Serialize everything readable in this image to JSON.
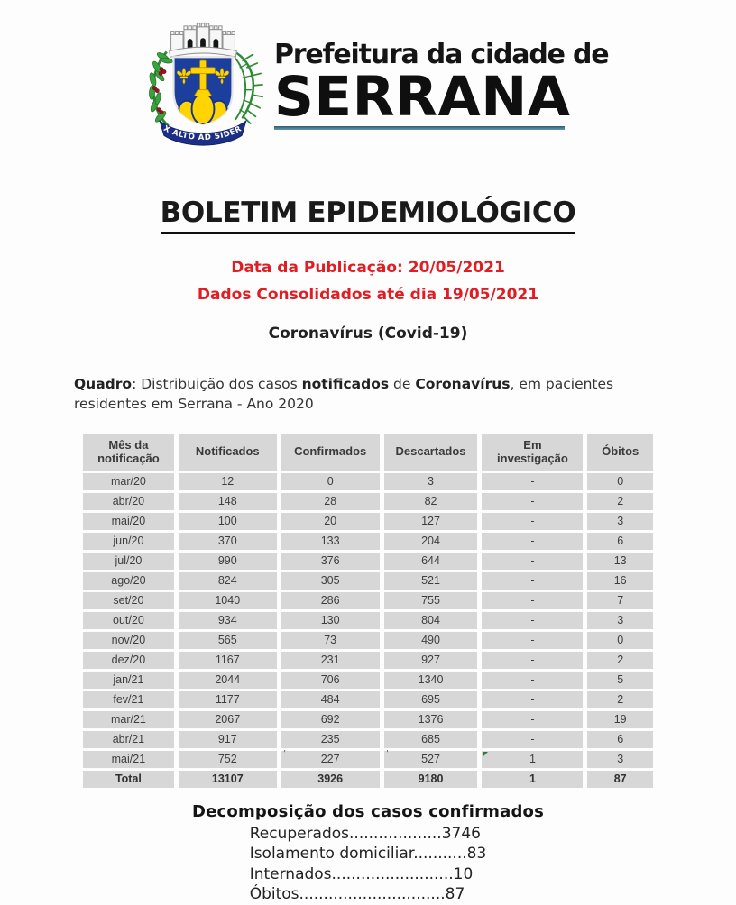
{
  "header": {
    "org_name_line1": "Prefeitura da cidade de",
    "org_name_line2": "SERRANA",
    "crest_motto": "EX ALTO AD SIDERA",
    "colors": {
      "shield_blue": "#1c3f9e",
      "gold": "#ffd400",
      "leaf_green": "#2e8b33",
      "ribbon_blue": "#1c2f86",
      "berry_red": "#9c1320",
      "underline_teal": "#4e8199"
    }
  },
  "title": "BOLETIM EPIDEMIOLÓGICO",
  "publication": {
    "date_line": "Data da Publicação: 20/05/2021",
    "consolidated_line": "Dados Consolidados até dia 19/05/2021",
    "text_color": "#e11d23"
  },
  "subtitle": "Coronavírus (Covid-19)",
  "caption": {
    "label": "Quadro",
    "part1": ": Distribuição dos casos ",
    "bold1": "notificados",
    "part2": " de ",
    "bold2": "Coronavírus",
    "part3": ", em pacientes residentes em Serrana - Ano 2020"
  },
  "table": {
    "headers": [
      "Mês da notificação",
      "Notificados",
      "Confirmados",
      "Descartados",
      "Em investigação",
      "Óbitos"
    ],
    "rows": [
      [
        "mar/20",
        "12",
        "0",
        "3",
        "-",
        "0"
      ],
      [
        "abr/20",
        "148",
        "28",
        "82",
        "-",
        "2"
      ],
      [
        "mai/20",
        "100",
        "20",
        "127",
        "-",
        "3"
      ],
      [
        "jun/20",
        "370",
        "133",
        "204",
        "-",
        "6"
      ],
      [
        "jul/20",
        "990",
        "376",
        "644",
        "-",
        "13"
      ],
      [
        "ago/20",
        "824",
        "305",
        "521",
        "-",
        "16"
      ],
      [
        "set/20",
        "1040",
        "286",
        "755",
        "-",
        "7"
      ],
      [
        "out/20",
        "934",
        "130",
        "804",
        "-",
        "3"
      ],
      [
        "nov/20",
        "565",
        "73",
        "490",
        "-",
        "0"
      ],
      [
        "dez/20",
        "1167",
        "231",
        "927",
        "-",
        "2"
      ],
      [
        "jan/21",
        "2044",
        "706",
        "1340",
        "-",
        "5"
      ],
      [
        "fev/21",
        "1177",
        "484",
        "695",
        "-",
        "2"
      ],
      [
        "mar/21",
        "2067",
        "692",
        "1376",
        "-",
        "19"
      ],
      [
        "abr/21",
        "917",
        "235",
        "685",
        "-",
        "6"
      ],
      [
        "mai/21",
        "752",
        "227",
        "527",
        "1",
        "3"
      ]
    ],
    "total_row": [
      "Total",
      "13107",
      "3926",
      "9180",
      "1",
      "87"
    ],
    "cell_bg": "#d7d7d7",
    "annotations": {
      "green_triangle_cell": {
        "row": 14,
        "col": 4
      },
      "tick_cells": [
        {
          "row": 14,
          "col": 2
        },
        {
          "row": 14,
          "col": 3
        }
      ]
    }
  },
  "decomposition": {
    "title": "Decomposição dos casos confirmados",
    "items": [
      {
        "label": "Recuperados",
        "dots": "...................",
        "value": "3746"
      },
      {
        "label": "Isolamento domiciliar",
        "dots": "...........",
        "value": "83"
      },
      {
        "label": "Internados",
        "dots": ".........................",
        "value": "10"
      },
      {
        "label": "Óbitos",
        "dots": "..............................",
        "value": "87"
      }
    ]
  }
}
